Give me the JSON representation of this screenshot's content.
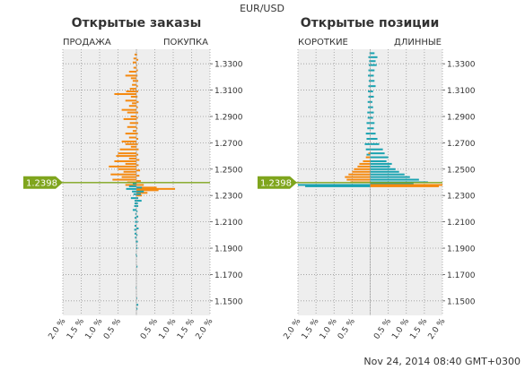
{
  "header": {
    "symbol": "EUR/USD",
    "timestamp": "Nov 24, 2014 08:40 GMT+0300"
  },
  "colors": {
    "sell": "#f5890f",
    "buy": "#1aa3b1",
    "price": "#7fa51d",
    "plot_bg": "#eeeeee",
    "grid": "#9a9a9a"
  },
  "chart_data": [
    {
      "type": "bar",
      "orientation": "horizontal",
      "title": "Открытые заказы",
      "left_label": "ПРОДАЖА",
      "right_label": "ПОКУПКА",
      "y_ticks": [
        "1.3300",
        "1.3100",
        "1.2900",
        "1.2700",
        "1.2500",
        "1.2300",
        "1.2100",
        "1.1900",
        "1.1700",
        "1.1500"
      ],
      "x_ticks": [
        "2.0 %",
        "1.5 %",
        "1.0 %",
        "0.5 %",
        "",
        "0.5 %",
        "1.0 %",
        "1.5 %",
        "2.0 %"
      ],
      "ylim": [
        1.139,
        1.341
      ],
      "xlim": [
        -2.0,
        2.0
      ],
      "current_price": "1.2398",
      "series": [
        {
          "side": "sell",
          "color": "orange",
          "points": [
            [
              1.337,
              0.05
            ],
            [
              1.334,
              0.08
            ],
            [
              1.331,
              0.1
            ],
            [
              1.327,
              0.08
            ],
            [
              1.324,
              0.2
            ],
            [
              1.321,
              0.3
            ],
            [
              1.319,
              0.15
            ],
            [
              1.317,
              0.1
            ],
            [
              1.314,
              0.12
            ],
            [
              1.311,
              0.18
            ],
            [
              1.309,
              0.28
            ],
            [
              1.307,
              0.6
            ],
            [
              1.305,
              0.15
            ],
            [
              1.302,
              0.3
            ],
            [
              1.3,
              0.12
            ],
            [
              1.298,
              0.2
            ],
            [
              1.295,
              0.4
            ],
            [
              1.293,
              0.25
            ],
            [
              1.29,
              0.15
            ],
            [
              1.288,
              0.35
            ],
            [
              1.285,
              0.18
            ],
            [
              1.282,
              0.25
            ],
            [
              1.279,
              0.1
            ],
            [
              1.277,
              0.3
            ],
            [
              1.274,
              0.2
            ],
            [
              1.271,
              0.4
            ],
            [
              1.269,
              0.3
            ],
            [
              1.267,
              0.15
            ],
            [
              1.265,
              0.45
            ],
            [
              1.262,
              0.5
            ],
            [
              1.26,
              0.55
            ],
            [
              1.258,
              0.2
            ],
            [
              1.256,
              0.6
            ],
            [
              1.254,
              0.3
            ],
            [
              1.252,
              0.75
            ],
            [
              1.25,
              0.5
            ],
            [
              1.248,
              0.35
            ],
            [
              1.246,
              0.7
            ],
            [
              1.244,
              0.4
            ],
            [
              1.242,
              0.65
            ],
            [
              1.24,
              0.25
            ],
            [
              1.238,
              0.3
            ]
          ]
        },
        {
          "side": "buy",
          "color": "orange",
          "points": [
            [
              1.337,
              0.02
            ],
            [
              1.333,
              0.05
            ],
            [
              1.329,
              0.02
            ],
            [
              1.325,
              0.04
            ],
            [
              1.321,
              0.03
            ],
            [
              1.317,
              0.05
            ],
            [
              1.313,
              0.04
            ],
            [
              1.309,
              0.05
            ],
            [
              1.305,
              0.03
            ],
            [
              1.301,
              0.06
            ],
            [
              1.297,
              0.04
            ],
            [
              1.293,
              0.05
            ],
            [
              1.289,
              0.04
            ],
            [
              1.285,
              0.05
            ],
            [
              1.281,
              0.03
            ],
            [
              1.277,
              0.04
            ],
            [
              1.273,
              0.05
            ],
            [
              1.269,
              0.04
            ],
            [
              1.265,
              0.06
            ],
            [
              1.261,
              0.05
            ],
            [
              1.257,
              0.08
            ],
            [
              1.253,
              0.06
            ],
            [
              1.249,
              0.1
            ],
            [
              1.245,
              0.08
            ],
            [
              1.241,
              0.12
            ],
            [
              1.238,
              0.2
            ],
            [
              1.236,
              0.55
            ],
            [
              1.235,
              1.05
            ],
            [
              1.234,
              0.6
            ],
            [
              1.232,
              0.3
            ],
            [
              1.23,
              0.15
            ]
          ]
        },
        {
          "side": "sell",
          "color": "teal",
          "points": [
            [
              1.239,
              0.1
            ],
            [
              1.237,
              0.2
            ],
            [
              1.235,
              0.28
            ],
            [
              1.233,
              0.12
            ],
            [
              1.231,
              0.08
            ],
            [
              1.228,
              0.15
            ],
            [
              1.226,
              0.05
            ],
            [
              1.224,
              0.05
            ],
            [
              1.222,
              0.06
            ],
            [
              1.219,
              0.1
            ],
            [
              1.216,
              0.03
            ],
            [
              1.213,
              0.05
            ],
            [
              1.21,
              0.04
            ],
            [
              1.207,
              0.05
            ],
            [
              1.204,
              0.06
            ],
            [
              1.201,
              0.05
            ],
            [
              1.198,
              0.04
            ],
            [
              1.195,
              0.02
            ],
            [
              1.185,
              0.02
            ],
            [
              1.16,
              0.01
            ]
          ]
        },
        {
          "side": "buy",
          "color": "teal",
          "points": [
            [
              1.236,
              0.15
            ],
            [
              1.233,
              0.2
            ],
            [
              1.231,
              0.12
            ],
            [
              1.228,
              0.05
            ],
            [
              1.226,
              0.14
            ],
            [
              1.224,
              0.04
            ],
            [
              1.222,
              0.05
            ],
            [
              1.218,
              0.03
            ],
            [
              1.214,
              0.05
            ],
            [
              1.21,
              0.04
            ],
            [
              1.205,
              0.06
            ],
            [
              1.2,
              0.03
            ],
            [
              1.195,
              0.04
            ],
            [
              1.192,
              0.02
            ],
            [
              1.19,
              0.03
            ],
            [
              1.184,
              0.02
            ],
            [
              1.176,
              0.03
            ],
            [
              1.152,
              0.02
            ],
            [
              1.147,
              0.05
            ],
            [
              1.144,
              0.03
            ]
          ]
        }
      ]
    },
    {
      "type": "bar",
      "orientation": "horizontal",
      "title": "Открытые позиции",
      "left_label": "КОРОТКИЕ",
      "right_label": "ДЛИННЫЕ",
      "y_ticks": [
        "1.3300",
        "1.3100",
        "1.2900",
        "1.2700",
        "1.2500",
        "1.2300",
        "1.2100",
        "1.1900",
        "1.1700",
        "1.1500"
      ],
      "x_ticks": [
        "2.0 %",
        "1.5 %",
        "1.0 %",
        "0.5 %",
        "",
        "0.5 %",
        "1.0 %",
        "1.5 %",
        "2.0 %"
      ],
      "ylim": [
        1.139,
        1.341
      ],
      "xlim": [
        -2.0,
        2.0
      ],
      "current_price": "1.2398",
      "series": [
        {
          "side": "short",
          "color": "teal",
          "points": [
            [
              1.338,
              0.02
            ],
            [
              1.335,
              0.05
            ],
            [
              1.332,
              0.03
            ],
            [
              1.329,
              0.04
            ],
            [
              1.325,
              0.05
            ],
            [
              1.321,
              0.06
            ],
            [
              1.317,
              0.04
            ],
            [
              1.313,
              0.05
            ],
            [
              1.309,
              0.06
            ],
            [
              1.305,
              0.05
            ],
            [
              1.301,
              0.07
            ],
            [
              1.297,
              0.06
            ],
            [
              1.293,
              0.08
            ],
            [
              1.289,
              0.07
            ],
            [
              1.285,
              0.1
            ],
            [
              1.281,
              0.08
            ],
            [
              1.277,
              0.12
            ],
            [
              1.273,
              0.1
            ],
            [
              1.269,
              0.15
            ],
            [
              1.265,
              0.12
            ],
            [
              1.261,
              0.1
            ],
            [
              1.238,
              2.0
            ],
            [
              1.237,
              1.8
            ]
          ]
        },
        {
          "side": "long",
          "color": "teal",
          "points": [
            [
              1.338,
              0.12
            ],
            [
              1.335,
              0.2
            ],
            [
              1.332,
              0.15
            ],
            [
              1.329,
              0.18
            ],
            [
              1.325,
              0.12
            ],
            [
              1.321,
              0.1
            ],
            [
              1.317,
              0.12
            ],
            [
              1.313,
              0.15
            ],
            [
              1.309,
              0.08
            ],
            [
              1.305,
              0.1
            ],
            [
              1.301,
              0.06
            ],
            [
              1.297,
              0.08
            ],
            [
              1.293,
              0.1
            ],
            [
              1.289,
              0.08
            ],
            [
              1.285,
              0.12
            ],
            [
              1.281,
              0.1
            ],
            [
              1.277,
              0.15
            ],
            [
              1.273,
              0.2
            ],
            [
              1.269,
              0.25
            ],
            [
              1.265,
              0.35
            ],
            [
              1.262,
              0.4
            ],
            [
              1.259,
              0.5
            ],
            [
              1.256,
              0.45
            ],
            [
              1.254,
              0.6
            ],
            [
              1.252,
              0.55
            ],
            [
              1.25,
              0.7
            ],
            [
              1.248,
              0.8
            ],
            [
              1.246,
              0.95
            ],
            [
              1.244,
              1.1
            ],
            [
              1.242,
              1.35
            ],
            [
              1.24,
              1.6
            ],
            [
              1.239,
              1.2
            ]
          ]
        },
        {
          "side": "short",
          "color": "orange",
          "points": [
            [
              1.262,
              0.05
            ],
            [
              1.259,
              0.12
            ],
            [
              1.256,
              0.2
            ],
            [
              1.254,
              0.3
            ],
            [
              1.252,
              0.35
            ],
            [
              1.25,
              0.45
            ],
            [
              1.248,
              0.5
            ],
            [
              1.246,
              0.6
            ],
            [
              1.244,
              0.7
            ],
            [
              1.242,
              0.65
            ],
            [
              1.24,
              0.55
            ]
          ]
        },
        {
          "side": "long",
          "color": "orange",
          "points": [
            [
              1.238,
              2.0
            ],
            [
              1.237,
              1.9
            ]
          ]
        }
      ]
    }
  ]
}
